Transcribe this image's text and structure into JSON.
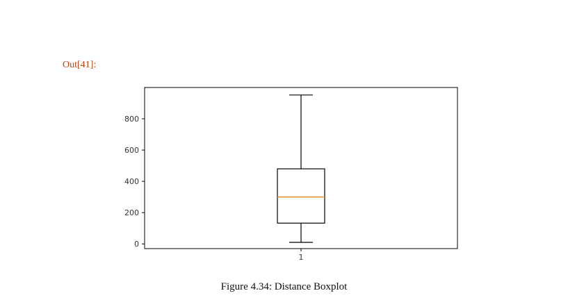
{
  "cell": {
    "out_prompt": "Out[41]:"
  },
  "figure": {
    "caption": "Figure 4.34: Distance Boxplot"
  },
  "chart_data": {
    "type": "box",
    "categories": [
      "1"
    ],
    "series": [
      {
        "min": 10,
        "q1": 133,
        "median": 300,
        "q3": 480,
        "max": 952
      }
    ],
    "ylim": [
      -30,
      1000
    ],
    "yticks": [
      0,
      200,
      400,
      600,
      800
    ],
    "grid": false,
    "colors": {
      "box": "#000000",
      "median": "#f28e2b",
      "axis": "#000000"
    }
  }
}
